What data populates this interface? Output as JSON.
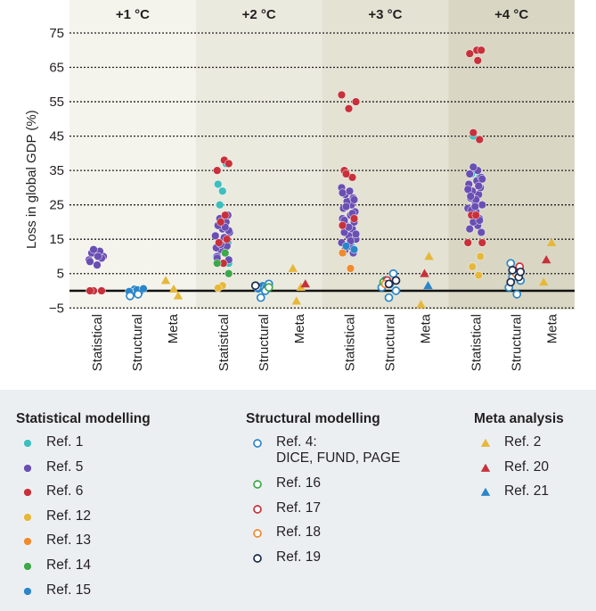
{
  "chart_data": {
    "type": "scatter",
    "ylabel": "Loss in global GDP (%)",
    "ylim": [
      -5,
      80
    ],
    "yticks": [
      75,
      65,
      55,
      45,
      35,
      25,
      15,
      5,
      -5
    ],
    "panels": [
      {
        "label": "+1 °C",
        "bg": "#f4f4ec"
      },
      {
        "label": "+2 °C",
        "bg": "#ebeadf"
      },
      {
        "label": "+3 °C",
        "bg": "#e3e2d3"
      },
      {
        "label": "+4 °C",
        "bg": "#d9d7c4"
      }
    ],
    "categories": [
      "Statistical",
      "Structural",
      "Meta"
    ],
    "series": [
      {
        "name": "Ref. 1",
        "group": "statistical",
        "shape": "circle-filled",
        "color": "#3cbfbf",
        "points": [
          [
            1,
            0,
            29
          ],
          [
            1,
            0,
            31
          ],
          [
            1,
            0,
            37
          ],
          [
            1,
            0,
            25
          ],
          [
            1,
            0,
            14
          ],
          [
            1,
            0,
            10
          ],
          [
            1,
            0,
            12
          ],
          [
            1,
            0,
            8
          ],
          [
            2,
            0,
            11
          ],
          [
            2,
            0,
            13
          ],
          [
            3,
            0,
            45
          ],
          [
            3,
            0,
            33
          ],
          [
            3,
            0,
            34
          ]
        ]
      },
      {
        "name": "Ref. 5",
        "group": "statistical",
        "shape": "circle-filled",
        "color": "#6a4fb3",
        "points": [
          [
            0,
            0,
            7.5
          ],
          [
            0,
            0,
            9
          ],
          [
            0,
            0,
            10
          ],
          [
            0,
            0,
            10.5
          ],
          [
            0,
            0,
            11
          ],
          [
            0,
            0,
            11.5
          ],
          [
            0,
            0,
            12
          ],
          [
            0,
            0,
            9.5
          ],
          [
            0,
            0,
            8.5
          ],
          [
            0,
            0,
            10
          ],
          [
            1,
            0,
            9
          ],
          [
            1,
            0,
            10
          ],
          [
            1,
            0,
            11
          ],
          [
            1,
            0,
            12
          ],
          [
            1,
            0,
            13
          ],
          [
            1,
            0,
            14
          ],
          [
            1,
            0,
            15
          ],
          [
            1,
            0,
            16
          ],
          [
            1,
            0,
            17
          ],
          [
            1,
            0,
            18
          ],
          [
            1,
            0,
            19
          ],
          [
            1,
            0,
            20
          ],
          [
            1,
            0,
            21
          ],
          [
            1,
            0,
            22
          ],
          [
            1,
            0,
            12.5
          ],
          [
            1,
            0,
            15.5
          ],
          [
            1,
            0,
            17.5
          ],
          [
            1,
            0,
            9.5
          ],
          [
            1,
            0,
            18.5
          ],
          [
            1,
            0,
            13.5
          ],
          [
            2,
            0,
            11
          ],
          [
            2,
            0,
            12
          ],
          [
            2,
            0,
            13
          ],
          [
            2,
            0,
            14
          ],
          [
            2,
            0,
            15
          ],
          [
            2,
            0,
            16
          ],
          [
            2,
            0,
            17
          ],
          [
            2,
            0,
            18
          ],
          [
            2,
            0,
            19
          ],
          [
            2,
            0,
            20
          ],
          [
            2,
            0,
            21
          ],
          [
            2,
            0,
            22
          ],
          [
            2,
            0,
            23
          ],
          [
            2,
            0,
            24
          ],
          [
            2,
            0,
            25
          ],
          [
            2,
            0,
            26
          ],
          [
            2,
            0,
            27
          ],
          [
            2,
            0,
            28
          ],
          [
            2,
            0,
            29
          ],
          [
            2,
            0,
            30
          ],
          [
            2,
            0,
            16.5
          ],
          [
            2,
            0,
            18.5
          ],
          [
            2,
            0,
            20.5
          ],
          [
            2,
            0,
            22.5
          ],
          [
            2,
            0,
            24.5
          ],
          [
            2,
            0,
            26.5
          ],
          [
            2,
            0,
            28.5
          ],
          [
            2,
            0,
            14.5
          ],
          [
            3,
            0,
            17
          ],
          [
            3,
            0,
            18
          ],
          [
            3,
            0,
            19
          ],
          [
            3,
            0,
            20
          ],
          [
            3,
            0,
            21
          ],
          [
            3,
            0,
            22
          ],
          [
            3,
            0,
            23
          ],
          [
            3,
            0,
            24
          ],
          [
            3,
            0,
            25
          ],
          [
            3,
            0,
            26
          ],
          [
            3,
            0,
            27
          ],
          [
            3,
            0,
            28
          ],
          [
            3,
            0,
            29
          ],
          [
            3,
            0,
            30
          ],
          [
            3,
            0,
            31
          ],
          [
            3,
            0,
            32
          ],
          [
            3,
            0,
            33
          ],
          [
            3,
            0,
            34
          ],
          [
            3,
            0,
            35
          ],
          [
            3,
            0,
            36
          ],
          [
            3,
            0,
            20.5
          ],
          [
            3,
            0,
            23.5
          ],
          [
            3,
            0,
            26.5
          ],
          [
            3,
            0,
            29.5
          ],
          [
            3,
            0,
            32.5
          ],
          [
            3,
            0,
            24.5
          ],
          [
            3,
            0,
            27.5
          ],
          [
            3,
            0,
            30.5
          ]
        ]
      },
      {
        "name": "Ref. 6",
        "group": "statistical",
        "shape": "circle-filled",
        "color": "#c8313b",
        "points": [
          [
            0,
            0,
            0
          ],
          [
            0,
            0,
            0
          ],
          [
            0,
            0,
            0
          ],
          [
            1,
            0,
            38
          ],
          [
            1,
            0,
            37
          ],
          [
            1,
            0,
            35
          ],
          [
            1,
            0,
            22
          ],
          [
            1,
            0,
            20
          ],
          [
            1,
            0,
            15
          ],
          [
            1,
            0,
            14
          ],
          [
            1,
            0,
            8
          ],
          [
            2,
            0,
            57
          ],
          [
            2,
            0,
            55
          ],
          [
            2,
            0,
            53
          ],
          [
            2,
            0,
            35
          ],
          [
            2,
            0,
            33
          ],
          [
            2,
            0,
            34
          ],
          [
            2,
            0,
            21
          ],
          [
            2,
            0,
            19
          ],
          [
            3,
            0,
            70
          ],
          [
            3,
            0,
            70
          ],
          [
            3,
            0,
            69
          ],
          [
            3,
            0,
            67
          ],
          [
            3,
            0,
            46
          ],
          [
            3,
            0,
            44
          ],
          [
            3,
            0,
            22
          ],
          [
            3,
            0,
            22
          ],
          [
            3,
            0,
            14
          ],
          [
            3,
            0,
            14
          ]
        ]
      },
      {
        "name": "Ref. 12",
        "group": "statistical",
        "shape": "circle-filled",
        "color": "#e6b83a",
        "points": [
          [
            1,
            0,
            1.5
          ],
          [
            1,
            0,
            0.8
          ],
          [
            3,
            0,
            4.5
          ],
          [
            3,
            0,
            7
          ],
          [
            3,
            0,
            10
          ]
        ]
      },
      {
        "name": "Ref. 13",
        "group": "statistical",
        "shape": "circle-filled",
        "color": "#f08a2c",
        "points": [
          [
            2,
            0,
            11
          ],
          [
            2,
            0,
            6.5
          ]
        ]
      },
      {
        "name": "Ref. 14",
        "group": "statistical",
        "shape": "circle-filled",
        "color": "#3ea84a",
        "points": [
          [
            1,
            0,
            5
          ],
          [
            1,
            0,
            8
          ],
          [
            1,
            0,
            11
          ]
        ]
      },
      {
        "name": "Ref. 15",
        "group": "statistical",
        "shape": "circle-filled",
        "color": "#2b86c8",
        "points": [
          [
            0,
            1,
            0.5
          ],
          [
            0,
            1,
            0
          ],
          [
            0,
            1,
            -0.5
          ],
          [
            0,
            1,
            0.3
          ],
          [
            0,
            1,
            -0.2
          ],
          [
            0,
            1,
            0.6
          ],
          [
            1,
            1,
            1.5
          ],
          [
            1,
            1,
            0.5
          ],
          [
            1,
            1,
            1
          ],
          [
            2,
            0,
            13
          ],
          [
            2,
            0,
            12
          ]
        ]
      },
      {
        "name": "Ref. 4:\nDICE, FUND, PAGE",
        "group": "structural",
        "shape": "circle-open",
        "color": "#2b86c8",
        "points": [
          [
            0,
            1,
            -1.5
          ],
          [
            0,
            1,
            -1
          ],
          [
            1,
            1,
            2
          ],
          [
            1,
            1,
            1
          ],
          [
            1,
            1,
            0
          ],
          [
            1,
            1,
            -2
          ],
          [
            2,
            1,
            5
          ],
          [
            2,
            1,
            3
          ],
          [
            2,
            1,
            2
          ],
          [
            2,
            1,
            1
          ],
          [
            2,
            1,
            0
          ],
          [
            2,
            1,
            -2
          ],
          [
            3,
            1,
            8
          ],
          [
            3,
            1,
            6
          ],
          [
            3,
            1,
            4
          ],
          [
            3,
            1,
            3
          ],
          [
            3,
            1,
            1
          ],
          [
            3,
            1,
            -1
          ]
        ]
      },
      {
        "name": "Ref. 16",
        "group": "structural",
        "shape": "circle-open",
        "color": "#3ea84a",
        "points": [
          [
            1,
            1,
            1
          ],
          [
            2,
            1,
            2.5
          ],
          [
            3,
            1,
            4.5
          ]
        ]
      },
      {
        "name": "Ref. 17",
        "group": "structural",
        "shape": "circle-open",
        "color": "#c8313b",
        "points": [
          [
            2,
            1,
            3
          ],
          [
            3,
            1,
            7
          ]
        ]
      },
      {
        "name": "Ref. 18",
        "group": "structural",
        "shape": "circle-open",
        "color": "#f08a2c",
        "points": [
          [
            2,
            1,
            2
          ],
          [
            3,
            1,
            5
          ]
        ]
      },
      {
        "name": "Ref. 19",
        "group": "structural",
        "shape": "circle-open",
        "color": "#1c2a4a",
        "points": [
          [
            1,
            1,
            1.5
          ],
          [
            2,
            1,
            3
          ],
          [
            2,
            1,
            2
          ],
          [
            3,
            1,
            2.5
          ],
          [
            3,
            1,
            4
          ],
          [
            3,
            1,
            6
          ],
          [
            3,
            1,
            5.5
          ]
        ]
      },
      {
        "name": "Ref. 2",
        "group": "meta",
        "shape": "triangle",
        "color": "#e6b83a",
        "points": [
          [
            0,
            2,
            3
          ],
          [
            0,
            2,
            0.5
          ],
          [
            0,
            2,
            -1.5
          ],
          [
            1,
            2,
            6.5
          ],
          [
            1,
            2,
            1
          ],
          [
            1,
            2,
            -3
          ],
          [
            2,
            2,
            10
          ],
          [
            2,
            2,
            -4
          ],
          [
            3,
            2,
            14
          ],
          [
            3,
            2,
            2.5
          ]
        ]
      },
      {
        "name": "Ref. 20",
        "group": "meta",
        "shape": "triangle",
        "color": "#c8313b",
        "points": [
          [
            1,
            2,
            2
          ],
          [
            2,
            2,
            5
          ],
          [
            3,
            2,
            9
          ]
        ]
      },
      {
        "name": "Ref. 21",
        "group": "meta",
        "shape": "triangle",
        "color": "#2b86c8",
        "points": [
          [
            2,
            2,
            1.5
          ]
        ]
      }
    ]
  },
  "legend": {
    "statistical_title": "Statistical modelling",
    "structural_title": "Structural modelling",
    "meta_title": "Meta analysis"
  }
}
